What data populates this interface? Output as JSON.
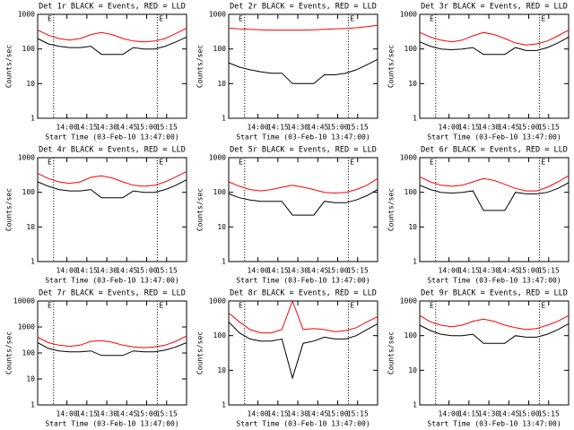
{
  "chart_data": [
    {
      "type": "line",
      "title": "Det 1r BLACK = Events, RED = LLD",
      "ylabel": "Counts/sec",
      "xlabel": "Start Time (03-Feb-10 13:47:00)",
      "log_y": true,
      "xlim": [
        "13:38",
        "15:30"
      ],
      "xticks": [
        "14:00",
        "14:15",
        "14:30",
        "14:45",
        "15:00",
        "15:15"
      ],
      "ylim": [
        1,
        1000
      ],
      "yticks": [
        1,
        10,
        100,
        1000
      ],
      "event_lines": [
        {
          "x": "13:50",
          "label": "E"
        },
        {
          "x": "15:08",
          "label": "E"
        }
      ],
      "x": [
        "13:38",
        "13:46",
        "13:54",
        "14:02",
        "14:10",
        "14:18",
        "14:26",
        "14:34",
        "14:42",
        "14:50",
        "14:58",
        "15:06",
        "15:14",
        "15:22",
        "15:30"
      ],
      "series": [
        {
          "name": "Events",
          "color": "#000000",
          "values": [
            200,
            140,
            120,
            110,
            110,
            120,
            70,
            70,
            70,
            110,
            100,
            100,
            120,
            160,
            220
          ]
        },
        {
          "name": "LLD",
          "color": "#ff0000",
          "values": [
            350,
            250,
            200,
            180,
            200,
            260,
            300,
            260,
            200,
            170,
            160,
            170,
            200,
            280,
            400
          ]
        }
      ]
    },
    {
      "type": "line",
      "title": "Det 2r BLACK = Events, RED = LLD",
      "ylabel": "Counts/sec",
      "xlabel": "Start Time (03-Feb-10 13:47:00)",
      "log_y": true,
      "xlim": [
        "13:38",
        "15:30"
      ],
      "xticks": [
        "14:00",
        "14:15",
        "14:30",
        "14:45",
        "15:00",
        "15:15"
      ],
      "ylim": [
        1,
        1000
      ],
      "yticks": [
        1,
        10,
        100,
        1000
      ],
      "event_lines": [
        {
          "x": "13:50",
          "label": "E"
        },
        {
          "x": "15:08",
          "label": "E"
        }
      ],
      "x": [
        "13:38",
        "13:46",
        "13:54",
        "14:02",
        "14:10",
        "14:18",
        "14:26",
        "14:34",
        "14:42",
        "14:50",
        "14:58",
        "15:06",
        "15:14",
        "15:22",
        "15:30"
      ],
      "series": [
        {
          "name": "Events",
          "color": "#000000",
          "values": [
            40,
            30,
            25,
            22,
            20,
            20,
            10,
            10,
            10,
            18,
            18,
            20,
            25,
            35,
            50
          ]
        },
        {
          "name": "LLD",
          "color": "#ff0000",
          "values": [
            400,
            380,
            370,
            360,
            350,
            350,
            350,
            350,
            360,
            370,
            380,
            390,
            410,
            440,
            480
          ]
        }
      ]
    },
    {
      "type": "line",
      "title": "Det 3r BLACK = Events, RED = LLD",
      "ylabel": "Counts/sec",
      "xlabel": "Start Time (03-Feb-10 13:47:00)",
      "log_y": true,
      "xlim": [
        "13:38",
        "15:30"
      ],
      "xticks": [
        "14:00",
        "14:15",
        "14:30",
        "14:45",
        "15:00",
        "15:15"
      ],
      "ylim": [
        1,
        1000
      ],
      "yticks": [
        1,
        10,
        100,
        1000
      ],
      "event_lines": [
        {
          "x": "13:50",
          "label": "E"
        },
        {
          "x": "15:08",
          "label": "E"
        }
      ],
      "x": [
        "13:38",
        "13:46",
        "13:54",
        "14:02",
        "14:10",
        "14:18",
        "14:26",
        "14:34",
        "14:42",
        "14:50",
        "14:58",
        "15:06",
        "15:14",
        "15:22",
        "15:30"
      ],
      "series": [
        {
          "name": "Events",
          "color": "#000000",
          "values": [
            160,
            120,
            100,
            95,
            100,
            110,
            70,
            70,
            70,
            110,
            90,
            90,
            110,
            150,
            220
          ]
        },
        {
          "name": "LLD",
          "color": "#ff0000",
          "values": [
            300,
            220,
            180,
            160,
            180,
            240,
            300,
            260,
            200,
            150,
            130,
            140,
            170,
            240,
            350
          ]
        }
      ]
    },
    {
      "type": "line",
      "title": "Det 4r BLACK = Events, RED = LLD",
      "ylabel": "Counts/sec",
      "xlabel": "Start Time (03-Feb-10 13:47:00)",
      "log_y": true,
      "xlim": [
        "13:38",
        "15:30"
      ],
      "xticks": [
        "14:00",
        "14:15",
        "14:30",
        "14:45",
        "15:00",
        "15:15"
      ],
      "ylim": [
        1,
        1000
      ],
      "yticks": [
        1,
        10,
        100,
        1000
      ],
      "event_lines": [
        {
          "x": "13:50",
          "label": "E"
        },
        {
          "x": "15:08",
          "label": "E"
        }
      ],
      "x": [
        "13:38",
        "13:46",
        "13:54",
        "14:02",
        "14:10",
        "14:18",
        "14:26",
        "14:34",
        "14:42",
        "14:50",
        "14:58",
        "15:06",
        "15:14",
        "15:22",
        "15:30"
      ],
      "series": [
        {
          "name": "Events",
          "color": "#000000",
          "values": [
            200,
            150,
            120,
            110,
            110,
            120,
            70,
            70,
            70,
            110,
            100,
            100,
            120,
            160,
            230
          ]
        },
        {
          "name": "LLD",
          "color": "#ff0000",
          "values": [
            350,
            250,
            200,
            180,
            200,
            270,
            300,
            260,
            200,
            160,
            150,
            160,
            200,
            280,
            400
          ]
        }
      ]
    },
    {
      "type": "line",
      "title": "Det 5r BLACK = Events, RED = LLD",
      "ylabel": "Counts/sec",
      "xlabel": "Start Time (03-Feb-10 13:47:00)",
      "log_y": true,
      "xlim": [
        "13:38",
        "15:30"
      ],
      "xticks": [
        "14:00",
        "14:15",
        "14:30",
        "14:45",
        "15:00",
        "15:15"
      ],
      "ylim": [
        1,
        1000
      ],
      "yticks": [
        1,
        10,
        100,
        1000
      ],
      "event_lines": [
        {
          "x": "13:50",
          "label": "E"
        },
        {
          "x": "15:08",
          "label": "E"
        }
      ],
      "x": [
        "13:38",
        "13:46",
        "13:54",
        "14:02",
        "14:10",
        "14:18",
        "14:26",
        "14:34",
        "14:42",
        "14:50",
        "14:58",
        "15:06",
        "15:14",
        "15:22",
        "15:30"
      ],
      "series": [
        {
          "name": "Events",
          "color": "#000000",
          "values": [
            90,
            70,
            60,
            55,
            55,
            55,
            22,
            22,
            22,
            55,
            50,
            50,
            60,
            80,
            120
          ]
        },
        {
          "name": "LLD",
          "color": "#ff0000",
          "values": [
            200,
            150,
            120,
            110,
            120,
            140,
            160,
            140,
            120,
            100,
            95,
            100,
            120,
            160,
            250
          ]
        }
      ]
    },
    {
      "type": "line",
      "title": "Det 6r BLACK = Events, RED = LLD",
      "ylabel": "Counts/sec",
      "xlabel": "Start Time (03-Feb-10 13:47:00)",
      "log_y": true,
      "xlim": [
        "13:38",
        "15:30"
      ],
      "xticks": [
        "14:00",
        "14:15",
        "14:30",
        "14:45",
        "15:00",
        "15:15"
      ],
      "ylim": [
        1,
        1000
      ],
      "yticks": [
        1,
        10,
        100,
        1000
      ],
      "event_lines": [
        {
          "x": "13:50",
          "label": "E"
        },
        {
          "x": "15:08",
          "label": "E"
        }
      ],
      "x": [
        "13:38",
        "13:46",
        "13:54",
        "14:02",
        "14:10",
        "14:18",
        "14:26",
        "14:34",
        "14:42",
        "14:50",
        "14:58",
        "15:06",
        "15:14",
        "15:22",
        "15:30"
      ],
      "series": [
        {
          "name": "Events",
          "color": "#000000",
          "values": [
            160,
            120,
            100,
            95,
            100,
            110,
            30,
            30,
            30,
            100,
            90,
            90,
            100,
            130,
            190
          ]
        },
        {
          "name": "LLD",
          "color": "#ff0000",
          "values": [
            280,
            200,
            160,
            150,
            160,
            200,
            250,
            220,
            170,
            130,
            110,
            110,
            140,
            200,
            300
          ]
        }
      ]
    },
    {
      "type": "line",
      "title": "Det 7r BLACK = Events, RED = LLD",
      "ylabel": "Counts/sec",
      "xlabel": "Start Time (03-Feb-10 13:47:00)",
      "log_y": true,
      "xlim": [
        "13:38",
        "15:30"
      ],
      "xticks": [
        "14:00",
        "14:15",
        "14:30",
        "14:45",
        "15:00",
        "15:15"
      ],
      "ylim": [
        1,
        10000
      ],
      "yticks": [
        1,
        10,
        100,
        1000,
        10000
      ],
      "event_lines": [
        {
          "x": "13:50",
          "label": "E"
        },
        {
          "x": "15:08",
          "label": "E"
        }
      ],
      "x": [
        "13:38",
        "13:46",
        "13:54",
        "14:02",
        "14:10",
        "14:18",
        "14:26",
        "14:34",
        "14:42",
        "14:50",
        "14:58",
        "15:06",
        "15:14",
        "15:22",
        "15:30"
      ],
      "series": [
        {
          "name": "Events",
          "color": "#000000",
          "values": [
            250,
            150,
            120,
            110,
            110,
            120,
            80,
            80,
            80,
            120,
            110,
            110,
            130,
            170,
            250
          ]
        },
        {
          "name": "LLD",
          "color": "#ff0000",
          "values": [
            400,
            250,
            200,
            180,
            200,
            280,
            300,
            260,
            200,
            170,
            160,
            170,
            200,
            280,
            450
          ]
        }
      ]
    },
    {
      "type": "line",
      "title": "Det 8r BLACK = Events, RED = LLD",
      "ylabel": "Counts/sec",
      "xlabel": "Start Time (03-Feb-10 13:47:00)",
      "log_y": true,
      "xlim": [
        "13:38",
        "15:30"
      ],
      "xticks": [
        "14:00",
        "14:15",
        "14:30",
        "14:45",
        "15:00",
        "15:15"
      ],
      "ylim": [
        1,
        1000
      ],
      "yticks": [
        1,
        10,
        100,
        1000
      ],
      "event_lines": [
        {
          "x": "13:50",
          "label": "E"
        },
        {
          "x": "15:08",
          "label": "E"
        }
      ],
      "x": [
        "13:38",
        "13:46",
        "13:54",
        "14:02",
        "14:10",
        "14:18",
        "14:26",
        "14:34",
        "14:42",
        "14:50",
        "14:58",
        "15:06",
        "15:14",
        "15:22",
        "15:30"
      ],
      "series": [
        {
          "name": "Events",
          "color": "#000000",
          "values": [
            250,
            120,
            80,
            70,
            70,
            80,
            6,
            60,
            70,
            90,
            80,
            80,
            100,
            150,
            220
          ]
        },
        {
          "name": "LLD",
          "color": "#ff0000",
          "values": [
            450,
            250,
            150,
            120,
            120,
            150,
            1000,
            150,
            160,
            150,
            130,
            140,
            170,
            250,
            350
          ]
        }
      ]
    },
    {
      "type": "line",
      "title": "Det 9r BLACK = Events, RED = LLD",
      "ylabel": "Counts/sec",
      "xlabel": "Start Time (03-Feb-10 13:47:00)",
      "log_y": true,
      "xlim": [
        "13:38",
        "15:30"
      ],
      "xticks": [
        "14:00",
        "14:15",
        "14:30",
        "14:45",
        "15:00",
        "15:15"
      ],
      "ylim": [
        1,
        1000
      ],
      "yticks": [
        1,
        10,
        100,
        1000
      ],
      "event_lines": [
        {
          "x": "13:50",
          "label": "E"
        },
        {
          "x": "15:08",
          "label": "E"
        }
      ],
      "x": [
        "13:38",
        "13:46",
        "13:54",
        "14:02",
        "14:10",
        "14:18",
        "14:26",
        "14:34",
        "14:42",
        "14:50",
        "14:58",
        "15:06",
        "15:14",
        "15:22",
        "15:30"
      ],
      "series": [
        {
          "name": "Events",
          "color": "#000000",
          "values": [
            200,
            140,
            110,
            100,
            100,
            110,
            60,
            60,
            60,
            100,
            90,
            90,
            110,
            150,
            220
          ]
        },
        {
          "name": "LLD",
          "color": "#ff0000",
          "values": [
            380,
            250,
            200,
            180,
            200,
            260,
            300,
            260,
            200,
            170,
            150,
            160,
            200,
            260,
            380
          ]
        }
      ]
    }
  ]
}
